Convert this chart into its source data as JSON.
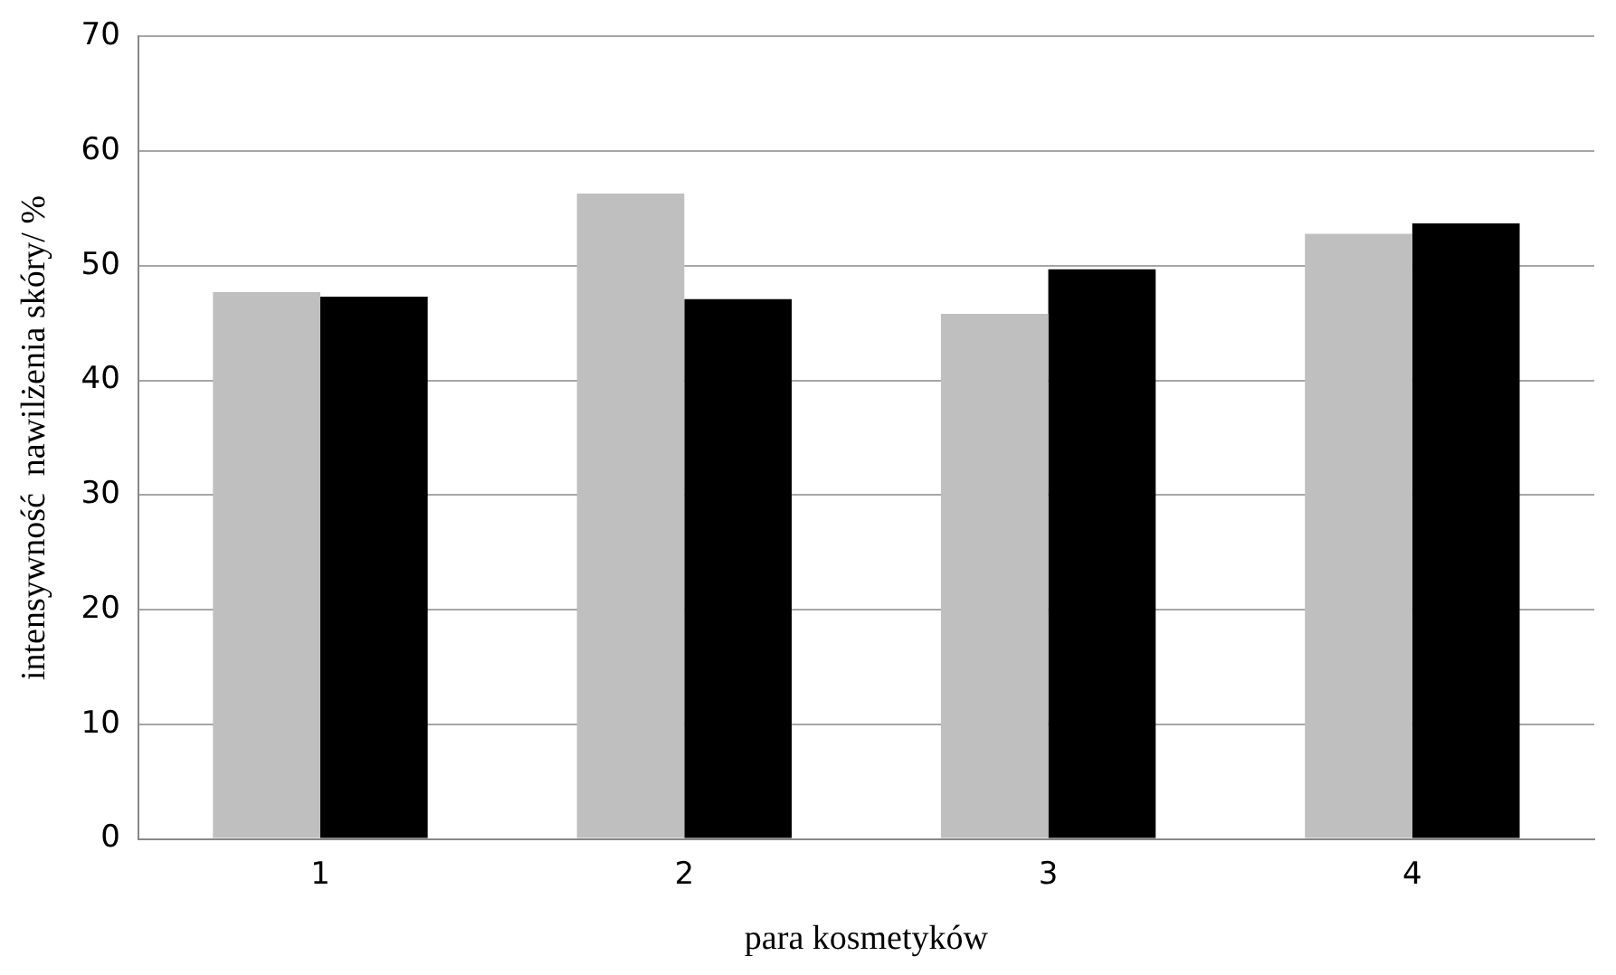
{
  "chart_data": {
    "type": "bar",
    "xlabel": "para kosmetyków",
    "ylabel": "intensywność  nawilżenia skóry/ %",
    "categories": [
      "1",
      "2",
      "3",
      "4"
    ],
    "series": [
      {
        "color": "#bfbfbf",
        "values": [
          47.7,
          56.3,
          45.8,
          52.8
        ]
      },
      {
        "color": "#000000",
        "values": [
          47.3,
          47.1,
          49.7,
          53.7
        ]
      }
    ],
    "ylim": [
      0,
      70
    ],
    "yticks": [
      0,
      10,
      20,
      30,
      40,
      50,
      60,
      70
    ],
    "grid": "y",
    "legend": false
  }
}
